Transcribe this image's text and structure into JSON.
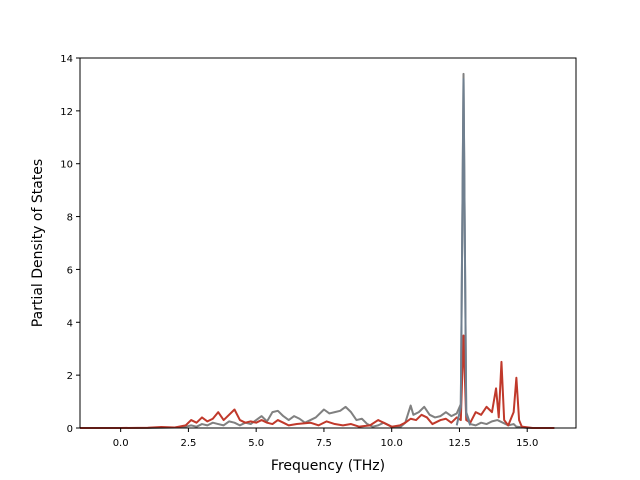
{
  "chart_data": {
    "type": "line",
    "title": "",
    "xlabel": "Frequency (THz)",
    "ylabel": "Partial Density of States",
    "xlim": [
      -1.5,
      16.8
    ],
    "ylim": [
      0,
      14
    ],
    "xticks": [
      0.0,
      2.5,
      5.0,
      7.5,
      10.0,
      12.5,
      15.0
    ],
    "xtick_labels": [
      "0.0",
      "2.5",
      "5.0",
      "7.5",
      "10.0",
      "12.5",
      "15.0"
    ],
    "yticks": [
      0,
      2,
      4,
      6,
      8,
      10,
      12,
      14
    ],
    "ytick_labels": [
      "0",
      "2",
      "4",
      "6",
      "8",
      "10",
      "12",
      "14"
    ],
    "grid": false,
    "series": [
      {
        "color": "#808080",
        "points": [
          [
            -1.5,
            0
          ],
          [
            0,
            0
          ],
          [
            1.0,
            0
          ],
          [
            2.0,
            0.02
          ],
          [
            2.4,
            0.05
          ],
          [
            2.6,
            0.1
          ],
          [
            2.8,
            0.05
          ],
          [
            3.0,
            0.15
          ],
          [
            3.2,
            0.1
          ],
          [
            3.4,
            0.2
          ],
          [
            3.6,
            0.15
          ],
          [
            3.8,
            0.1
          ],
          [
            4.0,
            0.25
          ],
          [
            4.2,
            0.2
          ],
          [
            4.4,
            0.1
          ],
          [
            4.6,
            0.2
          ],
          [
            4.8,
            0.15
          ],
          [
            5.0,
            0.3
          ],
          [
            5.2,
            0.45
          ],
          [
            5.4,
            0.25
          ],
          [
            5.6,
            0.6
          ],
          [
            5.8,
            0.65
          ],
          [
            6.0,
            0.45
          ],
          [
            6.2,
            0.3
          ],
          [
            6.4,
            0.45
          ],
          [
            6.6,
            0.35
          ],
          [
            6.8,
            0.2
          ],
          [
            7.0,
            0.3
          ],
          [
            7.2,
            0.4
          ],
          [
            7.5,
            0.7
          ],
          [
            7.7,
            0.55
          ],
          [
            7.9,
            0.6
          ],
          [
            8.1,
            0.65
          ],
          [
            8.3,
            0.8
          ],
          [
            8.5,
            0.6
          ],
          [
            8.7,
            0.3
          ],
          [
            8.9,
            0.35
          ],
          [
            9.1,
            0.15
          ],
          [
            9.3,
            0.05
          ],
          [
            9.5,
            0.1
          ],
          [
            9.7,
            0.2
          ],
          [
            10.0,
            0.05
          ],
          [
            10.3,
            0.02
          ],
          [
            10.5,
            0.2
          ],
          [
            10.7,
            0.85
          ],
          [
            10.8,
            0.5
          ],
          [
            11.0,
            0.6
          ],
          [
            11.2,
            0.8
          ],
          [
            11.4,
            0.5
          ],
          [
            11.6,
            0.4
          ],
          [
            11.8,
            0.45
          ],
          [
            12.0,
            0.6
          ],
          [
            12.2,
            0.45
          ],
          [
            12.4,
            0.55
          ],
          [
            12.55,
            0.9
          ],
          [
            12.65,
            13.4
          ],
          [
            12.75,
            0.6
          ],
          [
            12.9,
            0.15
          ],
          [
            13.1,
            0.1
          ],
          [
            13.3,
            0.2
          ],
          [
            13.5,
            0.15
          ],
          [
            13.7,
            0.25
          ],
          [
            13.9,
            0.3
          ],
          [
            14.1,
            0.2
          ],
          [
            14.3,
            0.1
          ],
          [
            14.5,
            0.15
          ],
          [
            14.6,
            0.05
          ],
          [
            15.0,
            0
          ],
          [
            16.0,
            0
          ]
        ]
      },
      {
        "color": "#c0392b",
        "points": [
          [
            -1.5,
            0
          ],
          [
            0,
            0
          ],
          [
            1.0,
            0.01
          ],
          [
            1.5,
            0.04
          ],
          [
            2.0,
            0.02
          ],
          [
            2.4,
            0.1
          ],
          [
            2.6,
            0.3
          ],
          [
            2.8,
            0.2
          ],
          [
            3.0,
            0.4
          ],
          [
            3.2,
            0.25
          ],
          [
            3.4,
            0.35
          ],
          [
            3.6,
            0.6
          ],
          [
            3.8,
            0.3
          ],
          [
            4.0,
            0.5
          ],
          [
            4.2,
            0.7
          ],
          [
            4.4,
            0.3
          ],
          [
            4.6,
            0.2
          ],
          [
            4.8,
            0.25
          ],
          [
            5.0,
            0.2
          ],
          [
            5.2,
            0.3
          ],
          [
            5.4,
            0.2
          ],
          [
            5.6,
            0.15
          ],
          [
            5.8,
            0.3
          ],
          [
            6.0,
            0.2
          ],
          [
            6.2,
            0.1
          ],
          [
            6.5,
            0.15
          ],
          [
            7.0,
            0.2
          ],
          [
            7.3,
            0.1
          ],
          [
            7.6,
            0.25
          ],
          [
            7.9,
            0.15
          ],
          [
            8.2,
            0.1
          ],
          [
            8.5,
            0.15
          ],
          [
            8.8,
            0.05
          ],
          [
            9.2,
            0.1
          ],
          [
            9.5,
            0.3
          ],
          [
            9.7,
            0.2
          ],
          [
            10.0,
            0.05
          ],
          [
            10.3,
            0.1
          ],
          [
            10.5,
            0.2
          ],
          [
            10.7,
            0.35
          ],
          [
            10.9,
            0.3
          ],
          [
            11.1,
            0.5
          ],
          [
            11.3,
            0.4
          ],
          [
            11.5,
            0.15
          ],
          [
            11.8,
            0.3
          ],
          [
            12.0,
            0.35
          ],
          [
            12.2,
            0.2
          ],
          [
            12.4,
            0.4
          ],
          [
            12.55,
            0.3
          ],
          [
            12.65,
            3.5
          ],
          [
            12.75,
            0.3
          ],
          [
            12.9,
            0.2
          ],
          [
            13.1,
            0.6
          ],
          [
            13.3,
            0.5
          ],
          [
            13.5,
            0.8
          ],
          [
            13.7,
            0.6
          ],
          [
            13.85,
            1.5
          ],
          [
            13.95,
            0.4
          ],
          [
            14.05,
            2.5
          ],
          [
            14.15,
            0.3
          ],
          [
            14.3,
            0.1
          ],
          [
            14.5,
            0.6
          ],
          [
            14.6,
            1.9
          ],
          [
            14.7,
            0.3
          ],
          [
            14.8,
            0.05
          ],
          [
            15.2,
            0
          ],
          [
            16.0,
            0
          ]
        ]
      },
      {
        "color": "#708090",
        "points": [
          [
            12.4,
            0.1
          ],
          [
            12.55,
            0.8
          ],
          [
            12.65,
            13.2
          ],
          [
            12.75,
            0.5
          ],
          [
            12.9,
            0.1
          ]
        ]
      }
    ]
  }
}
